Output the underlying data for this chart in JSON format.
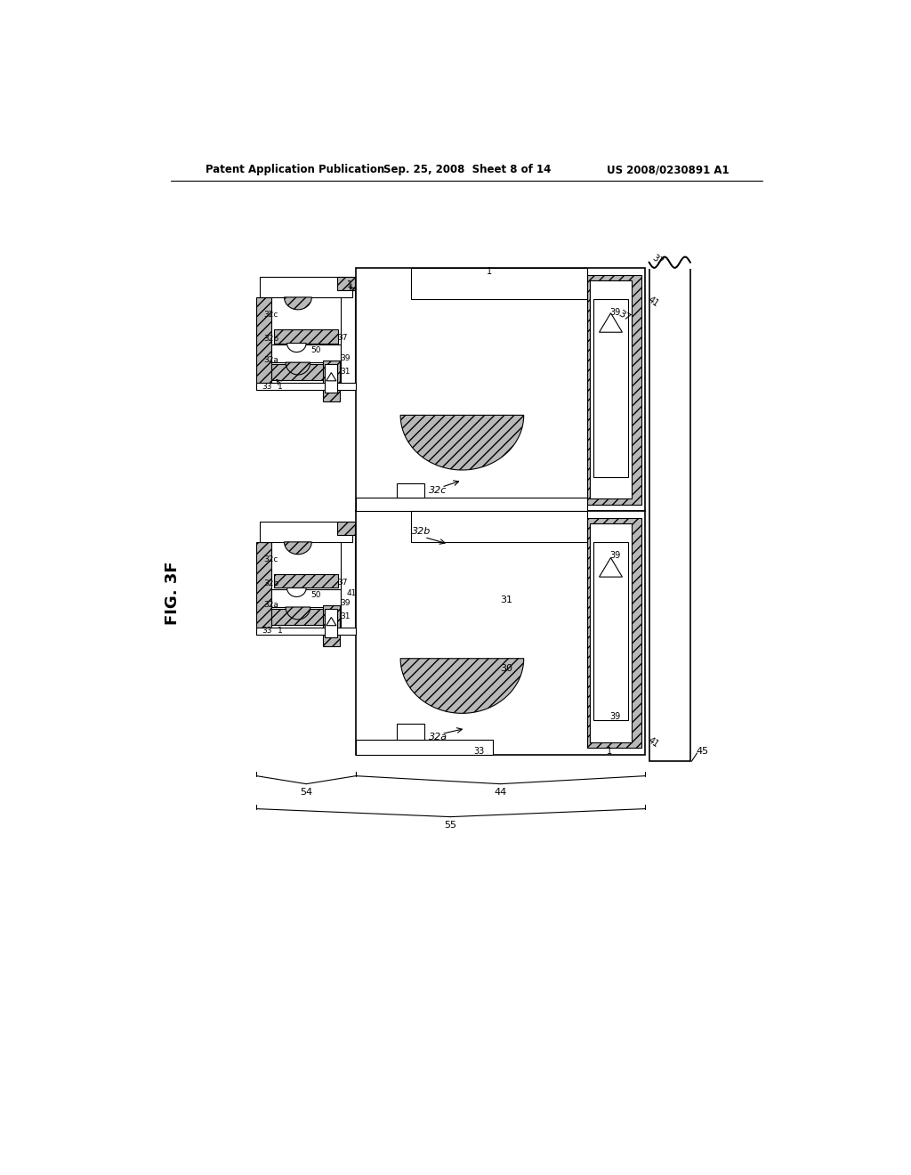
{
  "title_left": "Patent Application Publication",
  "title_mid": "Sep. 25, 2008  Sheet 8 of 14",
  "title_right": "US 2008/0230891 A1",
  "fig_label": "FIG. 3F",
  "bg_color": "#ffffff"
}
